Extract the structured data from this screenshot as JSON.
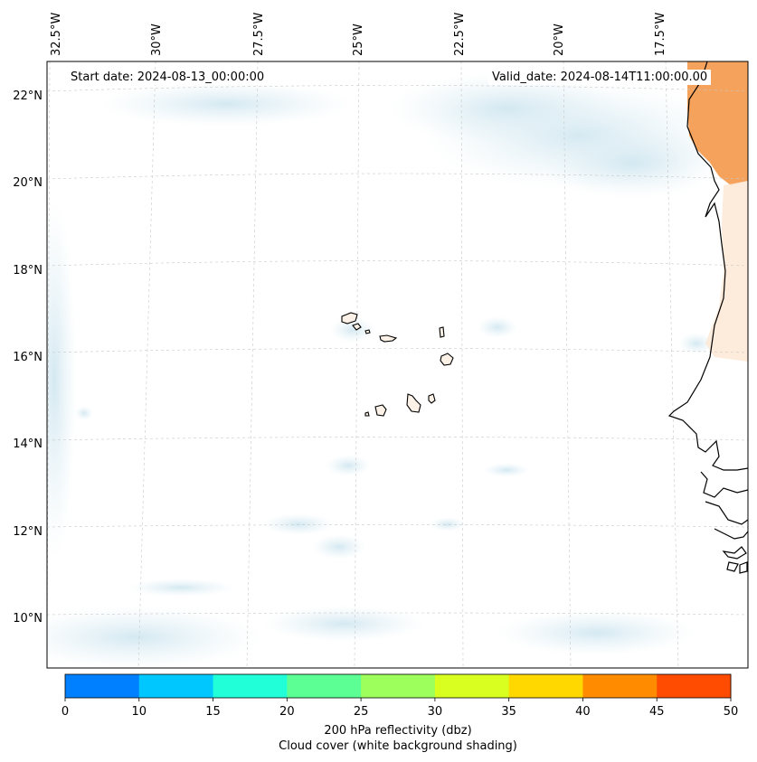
{
  "header": {
    "start_date": "Start date: 2024-08-13_00:00:00",
    "valid_date": "Valid_date: 2024-08-14T11:00:00.00"
  },
  "longitude_labels": [
    "32.5°W",
    "30°W",
    "27.5°W",
    "25°W",
    "22.5°W",
    "20°W",
    "17.5°W"
  ],
  "latitude_labels": [
    "22°N",
    "20°N",
    "18°N",
    "16°N",
    "14°N",
    "12°N",
    "10°N"
  ],
  "colorbar": {
    "title": "200 hPa reflectivity (dbz)",
    "subtitle": "Cloud cover (white background shading)",
    "ticks": [
      "0",
      "10",
      "15",
      "20",
      "25",
      "30",
      "35",
      "40",
      "45",
      "50"
    ],
    "colors": [
      "#0080ff",
      "#00c8ff",
      "#20ffd8",
      "#5cff94",
      "#9cff5c",
      "#d8ff20",
      "#ffd800",
      "#ff8c00",
      "#ff4c00"
    ]
  },
  "colors": {
    "cloud": "#d6ebf3",
    "land_high": "#f4a25c",
    "land_low": "#fde7d3"
  }
}
